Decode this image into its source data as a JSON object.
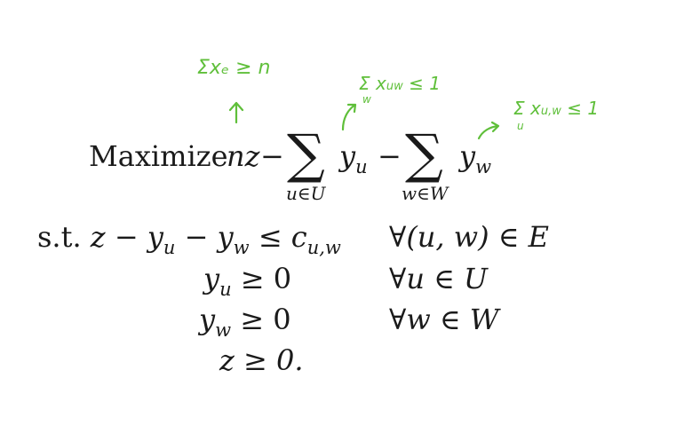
{
  "objective": {
    "keyword": "Maximize",
    "term": "nz",
    "minus": "−",
    "sum_symbol": "∑",
    "var_u": "y",
    "sub_u": "u",
    "var_w": "y",
    "sub_w": "w",
    "under_u": "u∈U",
    "under_w": "w∈W"
  },
  "constraints": [
    {
      "lhs_prefix": "s.t.",
      "lhs": "z − y",
      "lhs_sub1": "u",
      "lhs_mid": " − y",
      "lhs_sub2": "w",
      "rel": " ≤ c",
      "rel_sub": "u,w",
      "domain": "∀(u, w) ∈ E"
    },
    {
      "lhs": "y",
      "lhs_sub": "u",
      "rel": " ≥ 0",
      "domain": "∀u ∈ U"
    },
    {
      "lhs": "y",
      "lhs_sub": "w",
      "rel": " ≥ 0",
      "domain": "∀w ∈ W"
    },
    {
      "lhs": "z ≥ 0."
    }
  ],
  "annotations": {
    "note_z": "Σxₑ ≥ n",
    "note_u": "Σ x",
    "note_u_sub": "uw",
    "note_u_rel": " ≤ 1",
    "note_u_under": "w",
    "note_w": "Σ x",
    "note_w_sub": "u,w",
    "note_w_rel": " ≤ 1",
    "note_w_under": "u",
    "ink_color": "#5fbf3a"
  }
}
